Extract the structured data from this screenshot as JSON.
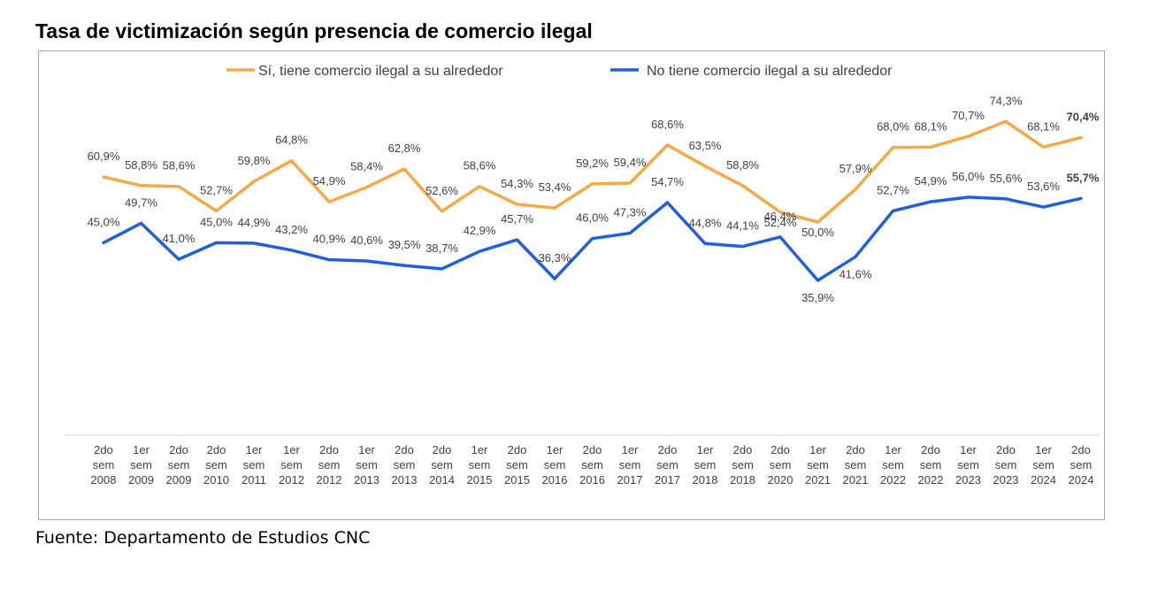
{
  "title": "Tasa de victimización según presencia de comercio ilegal",
  "source": "Fuente: Departamento de Estudios CNC",
  "chart_data": {
    "type": "line",
    "categories": [
      [
        "2do",
        "sem",
        "2008"
      ],
      [
        "1er",
        "sem",
        "2009"
      ],
      [
        "2do",
        "sem",
        "2009"
      ],
      [
        "2do",
        "sem",
        "2010"
      ],
      [
        "1er",
        "sem",
        "2011"
      ],
      [
        "1er",
        "sem",
        "2012"
      ],
      [
        "2do",
        "sem",
        "2012"
      ],
      [
        "1er",
        "sem",
        "2013"
      ],
      [
        "2do",
        "sem",
        "2013"
      ],
      [
        "2do",
        "sem",
        "2014"
      ],
      [
        "1er",
        "sem",
        "2015"
      ],
      [
        "2do",
        "sem",
        "2015"
      ],
      [
        "1er",
        "sem",
        "2016"
      ],
      [
        "2do",
        "sem",
        "2016"
      ],
      [
        "1er",
        "sem",
        "2017"
      ],
      [
        "2do",
        "sem",
        "2017"
      ],
      [
        "1er",
        "sem",
        "2018"
      ],
      [
        "2do",
        "sem",
        "2018"
      ],
      [
        "2do",
        "sem",
        "2020"
      ],
      [
        "1er",
        "sem",
        "2021"
      ],
      [
        "2do",
        "sem",
        "2021"
      ],
      [
        "1er",
        "sem",
        "2022"
      ],
      [
        "2do",
        "sem",
        "2022"
      ],
      [
        "1er",
        "sem",
        "2023"
      ],
      [
        "2do",
        "sem",
        "2023"
      ],
      [
        "1er",
        "sem",
        "2024"
      ],
      [
        "2do",
        "sem",
        "2024"
      ]
    ],
    "series": [
      {
        "name": "Sí, tiene comercio ilegal a su alrededor",
        "color": "#f5a947",
        "values": [
          60.9,
          58.8,
          58.6,
          52.7,
          59.8,
          64.8,
          54.9,
          58.4,
          62.8,
          52.6,
          58.6,
          54.3,
          53.4,
          59.2,
          59.4,
          68.6,
          63.5,
          58.8,
          52.4,
          50.0,
          57.9,
          68.0,
          68.1,
          70.7,
          74.3,
          68.1,
          70.4
        ],
        "labels": [
          "60,9%",
          "58,8%",
          "58,6%",
          "52,7%",
          "59,8%",
          "64,8%",
          "54,9%",
          "58,4%",
          "62,8%",
          "52,6%",
          "58,6%",
          "54,3%",
          "53,4%",
          "59,2%",
          "59,4%",
          "68,6%",
          "63,5%",
          "58,8%",
          "52,4%",
          "50,0%",
          "57,9%",
          "68,0%",
          "68,1%",
          "70,7%",
          "74,3%",
          "68,1%",
          "70,4%"
        ]
      },
      {
        "name": "No tiene comercio ilegal a su alrededor",
        "color": "#1f5fe0",
        "values": [
          45.0,
          49.7,
          41.0,
          45.0,
          44.9,
          43.2,
          40.9,
          40.6,
          39.5,
          38.7,
          42.9,
          45.7,
          36.3,
          46.0,
          47.3,
          54.7,
          44.8,
          44.1,
          46.4,
          35.9,
          41.6,
          52.7,
          54.9,
          56.0,
          55.6,
          53.6,
          55.7
        ],
        "labels": [
          "45,0%",
          "49,7%",
          "41,0%",
          "45,0%",
          "44,9%",
          "43,2%",
          "40,9%",
          "40,6%",
          "39,5%",
          "38,7%",
          "42,9%",
          "45,7%",
          "36,3%",
          "46,0%",
          "47,3%",
          "54,7%",
          "44,8%",
          "44,1%",
          "46,4%",
          "35,9%",
          "41,6%",
          "52,7%",
          "54,9%",
          "56,0%",
          "55,6%",
          "53,6%",
          "55,7%"
        ]
      }
    ],
    "legend": "top",
    "grid": false
  }
}
